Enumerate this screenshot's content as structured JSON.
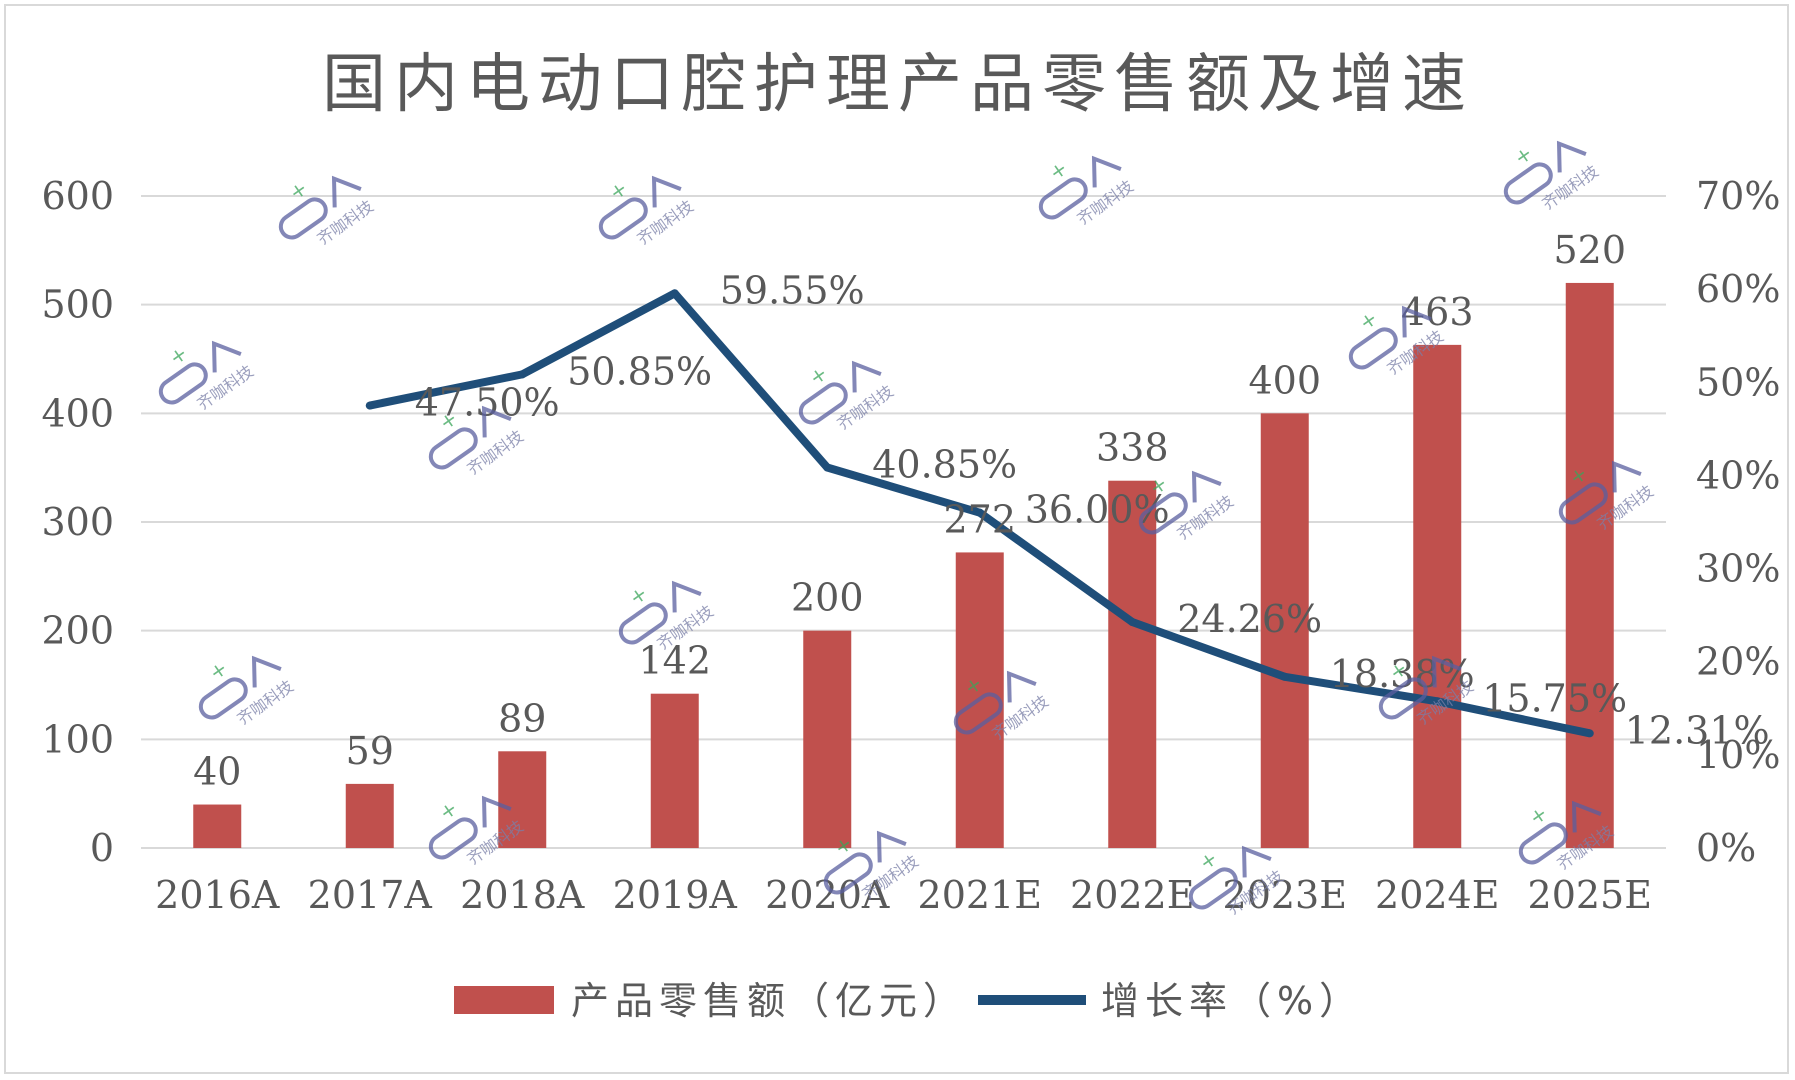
{
  "chart_data": {
    "type": "bar",
    "title": "国内电动口腔护理产品零售额及增速",
    "categories": [
      "2016A",
      "2017A",
      "2018A",
      "2019A",
      "2020A",
      "2021E",
      "2022E",
      "2023E",
      "2024E",
      "2025E"
    ],
    "series": [
      {
        "name": "产品零售额（亿元）",
        "type": "bar",
        "axis": "left",
        "values": [
          40,
          59,
          89,
          142,
          200,
          272,
          338,
          400,
          463,
          520
        ],
        "labels": [
          "40",
          "59",
          "89",
          "142",
          "200",
          "272",
          "338",
          "400",
          "463",
          "520"
        ]
      },
      {
        "name": "增长率（%）",
        "type": "line",
        "axis": "right",
        "values": [
          null,
          47.5,
          50.85,
          59.55,
          40.85,
          36.0,
          24.26,
          18.38,
          15.75,
          12.31
        ],
        "labels": [
          "",
          "47.50%",
          "50.85%",
          "59.55%",
          "40.85%",
          "36.00%",
          "24.26%",
          "18.38%",
          "15.75%",
          "12.31%"
        ]
      }
    ],
    "ylim_left": [
      0,
      600
    ],
    "yticks_left": [
      "0",
      "100",
      "200",
      "300",
      "400",
      "500",
      "600"
    ],
    "ylim_right": [
      0,
      70
    ],
    "yticks_right": [
      "0%",
      "10%",
      "20%",
      "30%",
      "40%",
      "50%",
      "60%",
      "70%"
    ],
    "grid": true,
    "legend_position": "bottom",
    "colors": {
      "bar": "#c0504d",
      "line": "#1f4e79",
      "grid": "#d9d9d9",
      "text": "#595959"
    }
  },
  "watermark": {
    "text": "齐咖科技"
  }
}
